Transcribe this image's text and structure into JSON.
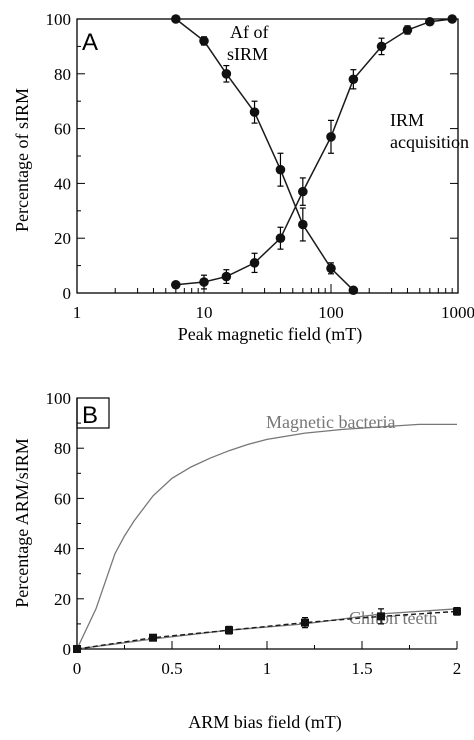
{
  "chart_data": [
    {
      "type": "line",
      "panel_label": "A",
      "xlabel": "Peak magnetic field (mT)",
      "ylabel": "Percentage  of  sIRM",
      "x_scale": "log",
      "xlim": [
        1,
        1000
      ],
      "ylim": [
        0,
        100
      ],
      "x_tick_labels": [
        "1",
        "10",
        "100",
        "1000"
      ],
      "y_tick_labels": [
        "0",
        "20",
        "40",
        "60",
        "80",
        "100"
      ],
      "annotations": [
        {
          "lines": [
            "Af of",
            "sIRM"
          ]
        },
        {
          "lines": [
            "IRM",
            "acquisition"
          ]
        }
      ],
      "series": [
        {
          "x": [
            6,
            10,
            15,
            25,
            40,
            60,
            100,
            150
          ],
          "y": [
            100,
            92,
            80,
            66,
            45,
            25,
            9,
            1
          ],
          "err": [
            0,
            1.5,
            3,
            4,
            6,
            6,
            2,
            0
          ],
          "color": "#1a1a1a"
        },
        {
          "x": [
            6,
            10,
            15,
            25,
            40,
            60,
            100,
            150,
            250,
            400,
            600,
            900
          ],
          "y": [
            3,
            4,
            6,
            11,
            20,
            37,
            57,
            78,
            90,
            96,
            99,
            100
          ],
          "err": [
            1,
            2.5,
            2.5,
            3.5,
            4,
            5,
            6,
            3.5,
            3,
            1.5,
            0.5,
            0
          ],
          "color": "#1a1a1a"
        }
      ]
    },
    {
      "type": "line",
      "panel_label": "B",
      "xlabel": "ARM bias field (mT)",
      "ylabel": "Percentage  ARM/sIRM",
      "xlim": [
        0,
        2
      ],
      "ylim": [
        0,
        100
      ],
      "x_tick_labels": [
        "0",
        "0.5",
        "1",
        "1.5",
        "2"
      ],
      "y_tick_labels": [
        "0",
        "20",
        "40",
        "60",
        "80",
        "100"
      ],
      "series": [
        {
          "name": "Magnetic bacteria",
          "color": "#777777",
          "x": [
            0,
            0.05,
            0.1,
            0.15,
            0.2,
            0.25,
            0.3,
            0.4,
            0.5,
            0.6,
            0.7,
            0.8,
            0.9,
            1.0,
            1.2,
            1.4,
            1.6,
            1.8,
            2.0
          ],
          "y": [
            0,
            8,
            16,
            27,
            38,
            45,
            51,
            61,
            68,
            72.5,
            76,
            79,
            81.5,
            83.5,
            86,
            87.5,
            88.5,
            89.5,
            89.5
          ]
        },
        {
          "name": "Chiton teeth",
          "color": "#777777",
          "x": [
            0,
            0.4,
            0.8,
            1.2,
            1.6,
            2.0
          ],
          "y": [
            0,
            4,
            7.5,
            10,
            14,
            16
          ]
        },
        {
          "color": "#1a1a1a",
          "dashed": true,
          "x": [
            0,
            0.4,
            0.8,
            1.2,
            1.6,
            2.0
          ],
          "y": [
            0,
            4.5,
            7.5,
            10.5,
            13,
            15
          ],
          "err": [
            0,
            1,
            1.5,
            2,
            3,
            1.5
          ]
        }
      ]
    }
  ]
}
